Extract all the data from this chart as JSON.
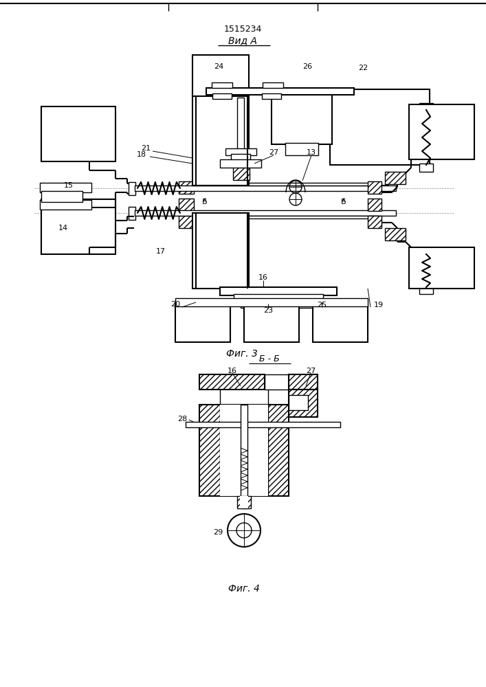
{
  "title": "1515234",
  "view_label": "Вид A",
  "fig3_label": "Фиг. 3",
  "fig4_label": "Фиг. 4",
  "section_label": "Б - Б",
  "bg_color": "#ffffff",
  "line_color": "#000000",
  "fig_width": 7.07,
  "fig_height": 10.0,
  "dpi": 100
}
